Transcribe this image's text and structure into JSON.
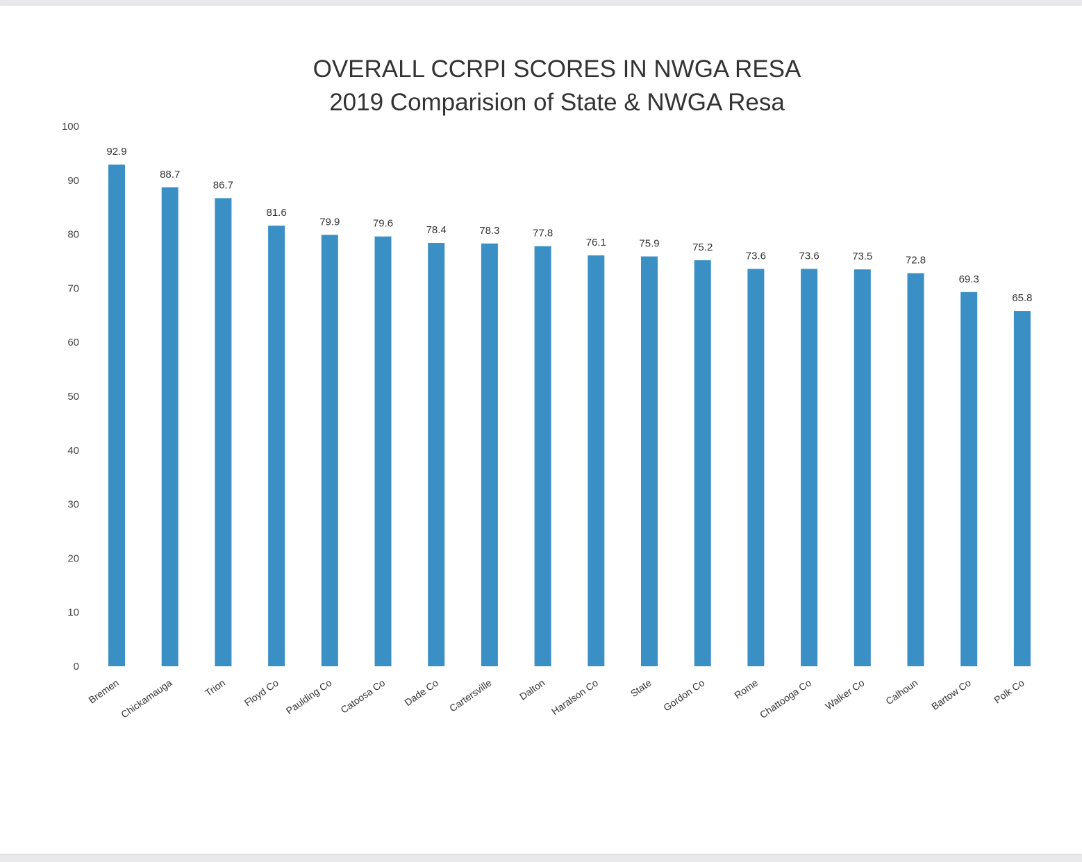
{
  "chart_data": {
    "type": "bar",
    "title": "OVERALL CCRPI SCORES IN NWGA RESA",
    "subtitle": "2019 Comparision of State & NWGA Resa",
    "xlabel": "",
    "ylabel": "",
    "ylim": [
      0,
      100
    ],
    "yticks": [
      "100",
      "90",
      "80",
      "70",
      "60",
      "50",
      "40",
      "30",
      "20",
      "10",
      "0"
    ],
    "grid": false,
    "bar_color": "#3a8fc4",
    "categories": [
      "Bremen",
      "Chickamauga",
      "Trion",
      "Floyd Co",
      "Paulding Co",
      "Catoosa Co",
      "Dade Co",
      "Cartersville",
      "Dalton",
      "Haralson Co",
      "State",
      "Gordon Co",
      "Rome",
      "Chattooga Co",
      "Walker Co",
      "Calhoun",
      "Bartow Co",
      "Polk Co"
    ],
    "values": [
      92.9,
      88.7,
      86.7,
      81.6,
      79.9,
      79.6,
      78.4,
      78.3,
      77.8,
      76.1,
      75.9,
      75.2,
      73.6,
      73.6,
      73.5,
      72.8,
      69.3,
      65.8
    ],
    "value_labels": [
      "92.9",
      "88.7",
      "86.7",
      "81.6",
      "79.9",
      "79.6",
      "78.4",
      "78.3",
      "77.8",
      "76.1",
      "75.9",
      "75.2",
      "73.6",
      "73.6",
      "73.5",
      "72.8",
      "69.3",
      "65.8"
    ]
  }
}
